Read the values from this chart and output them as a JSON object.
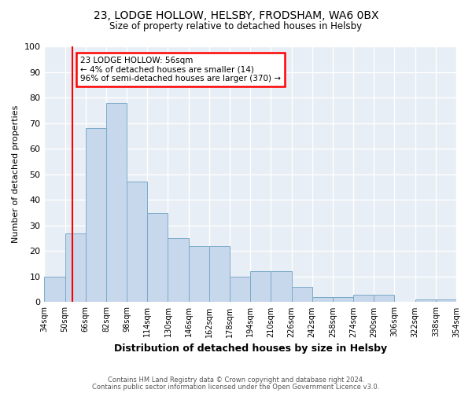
{
  "title1": "23, LODGE HOLLOW, HELSBY, FRODSHAM, WA6 0BX",
  "title2": "Size of property relative to detached houses in Helsby",
  "xlabel": "Distribution of detached houses by size in Helsby",
  "ylabel": "Number of detached properties",
  "bin_labels": [
    "34sqm",
    "50sqm",
    "66sqm",
    "82sqm",
    "98sqm",
    "114sqm",
    "130sqm",
    "146sqm",
    "162sqm",
    "178sqm",
    "194sqm",
    "210sqm",
    "226sqm",
    "242sqm",
    "258sqm",
    "274sqm",
    "290sqm",
    "306sqm",
    "322sqm",
    "338sqm",
    "354sqm"
  ],
  "bar_values": [
    10,
    27,
    68,
    78,
    47,
    35,
    25,
    22,
    22,
    10,
    12,
    12,
    6,
    2,
    2,
    3,
    3,
    0,
    1,
    1
  ],
  "bin_edges": [
    34,
    50,
    66,
    82,
    98,
    114,
    130,
    146,
    162,
    178,
    194,
    210,
    226,
    242,
    258,
    274,
    290,
    306,
    322,
    338,
    354
  ],
  "bar_color": "#c8d8ec",
  "bar_edge_color": "#7aaac8",
  "red_line_x": 56,
  "annotation_text": "23 LODGE HOLLOW: 56sqm\n← 4% of detached houses are smaller (14)\n96% of semi-detached houses are larger (370) →",
  "annotation_box_color": "white",
  "annotation_box_edge": "red",
  "ylim": [
    0,
    100
  ],
  "yticks": [
    0,
    10,
    20,
    30,
    40,
    50,
    60,
    70,
    80,
    90,
    100
  ],
  "footer1": "Contains HM Land Registry data © Crown copyright and database right 2024.",
  "footer2": "Contains public sector information licensed under the Open Government Licence v3.0.",
  "bg_color": "#ffffff",
  "plot_bg_color": "#e8eef5"
}
